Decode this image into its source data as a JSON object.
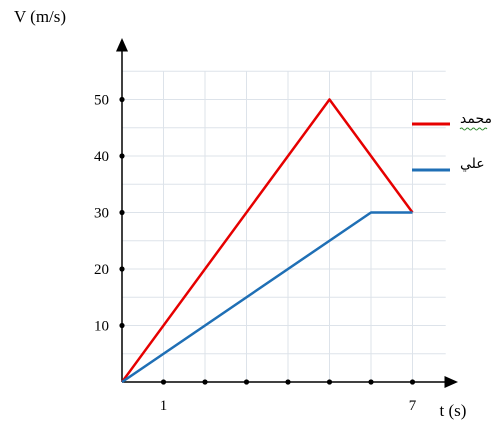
{
  "chart_data": {
    "type": "line",
    "ylabel": "V (m/s)",
    "xlabel": "t (s)",
    "xlim": [
      0,
      7.8
    ],
    "ylim": [
      0,
      55
    ],
    "x_ticks": [
      1,
      2,
      3,
      4,
      5,
      6,
      7
    ],
    "x_tick_labels": [
      "1",
      "7"
    ],
    "y_ticks": [
      10,
      20,
      30,
      40,
      50
    ],
    "y_tick_labels": [
      "10",
      "20",
      "30",
      "40",
      "50"
    ],
    "grid": true,
    "legend_position": "right",
    "series": [
      {
        "name": "محمد",
        "color": "#e60000",
        "x": [
          0,
          5,
          7
        ],
        "y": [
          0,
          50,
          30
        ]
      },
      {
        "name": "علي",
        "color": "#1f6fb5",
        "x": [
          0,
          6,
          7
        ],
        "y": [
          0,
          30,
          30
        ]
      }
    ]
  }
}
